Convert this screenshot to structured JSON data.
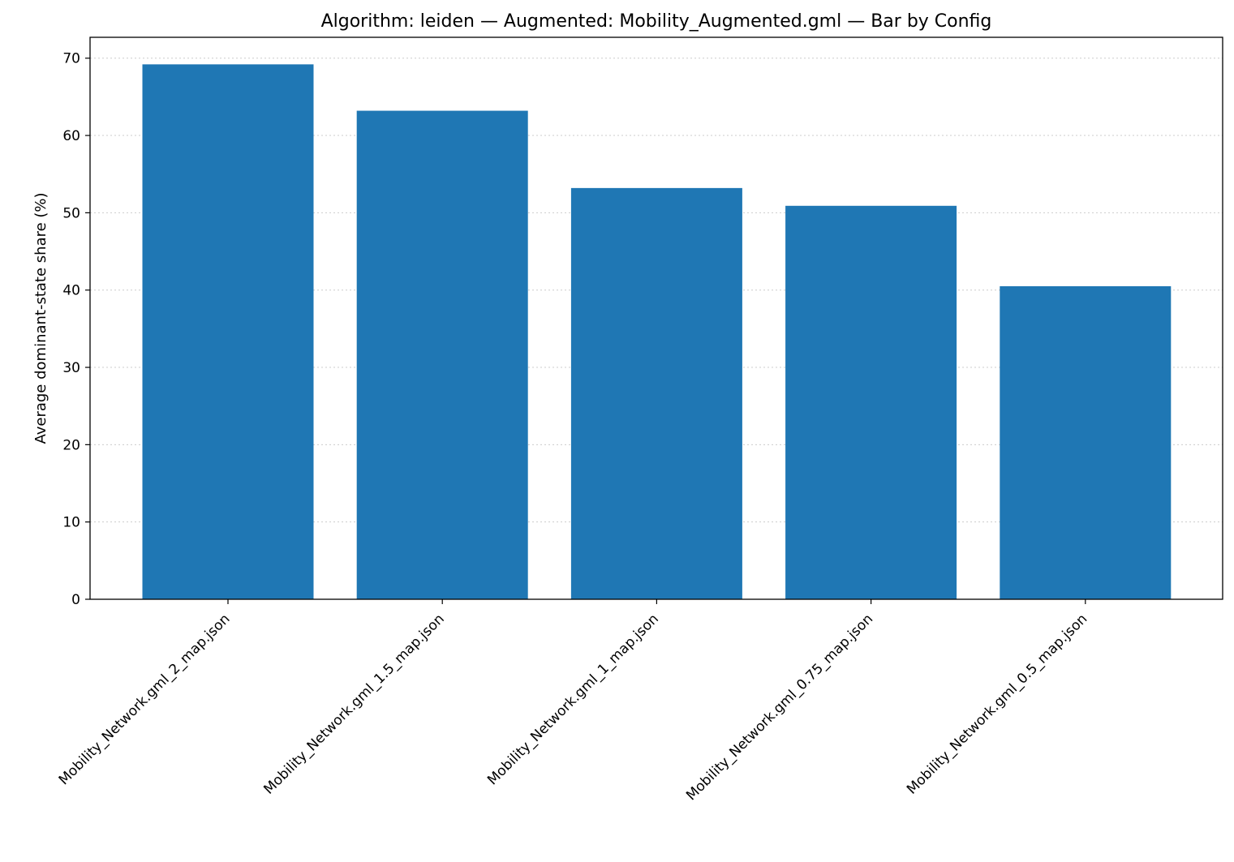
{
  "chart_data": {
    "type": "bar",
    "title": "Algorithm: leiden — Augmented: Mobility_Augmented.gml — Bar by Config",
    "xlabel": "",
    "ylabel": "Average dominant-state share (%)",
    "categories": [
      "Mobility_Network.gml_2_map.json",
      "Mobility_Network.gml_1.5_map.json",
      "Mobility_Network.gml_1_map.json",
      "Mobility_Network.gml_0.75_map.json",
      "Mobility_Network.gml_0.5_map.json"
    ],
    "values": [
      69.2,
      63.2,
      53.2,
      50.9,
      40.5
    ],
    "ylim": [
      0,
      72.7
    ],
    "yticks": [
      0,
      10,
      20,
      30,
      40,
      50,
      60,
      70
    ],
    "grid": "y-dotted",
    "legend": "none",
    "bar_color": "#1f77b4",
    "grid_color": "#cccccc"
  }
}
